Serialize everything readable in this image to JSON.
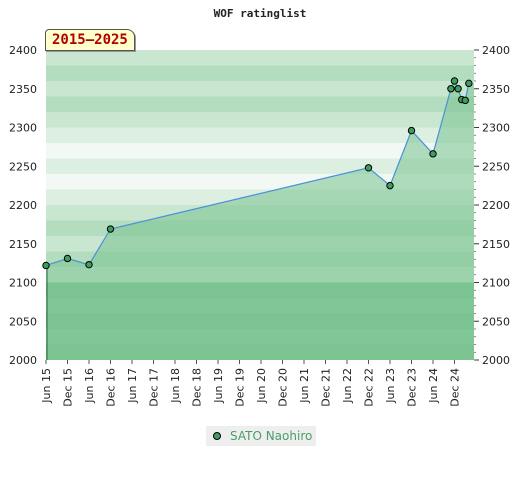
{
  "chart_data": {
    "type": "line",
    "title": "WOF ratinglist",
    "badge": "2015–2025",
    "ylim": [
      2000,
      2400
    ],
    "ytick_labels": [
      "2000",
      "2050",
      "2100",
      "2150",
      "2200",
      "2250",
      "2300",
      "2350",
      "2400"
    ],
    "xtick_labels": [
      "Jun 15",
      "Dec 15",
      "Jun 16",
      "Dec 16",
      "Jun 17",
      "Dec 17",
      "Jun 18",
      "Dec 18",
      "Jun 19",
      "Dec 19",
      "Jun 20",
      "Dec 20",
      "Jun 21",
      "Dec 21",
      "Jun 22",
      "Dec 22",
      "Jun 23",
      "Dec 23",
      "Jun 24",
      "Dec 24"
    ],
    "grid": true,
    "legend_position": "bottom-center",
    "series": [
      {
        "name": "SATO Naohiro",
        "x": [
          "Jun 15",
          "Dec 15",
          "Jun 16",
          "Dec 16",
          "Dec 22",
          "Jun 23",
          "Dec 23",
          "Jun 24",
          "Nov 24",
          "Dec 24",
          "Jan 25",
          "Feb 25",
          "Mar 25",
          "Apr 25"
        ],
        "values": [
          2122,
          2131,
          2123,
          2169,
          2248,
          2225,
          2296,
          2266,
          2350,
          2360,
          2350,
          2336,
          2335,
          2357
        ]
      }
    ],
    "colors": {
      "area_fill": "#8fc9a1",
      "line": "#4a90d9",
      "marker": "#3f9e5f",
      "band_dark": "#79c28f",
      "band_light": "#f2f8f3"
    }
  },
  "legend": {
    "label": "SATO Naohiro"
  }
}
